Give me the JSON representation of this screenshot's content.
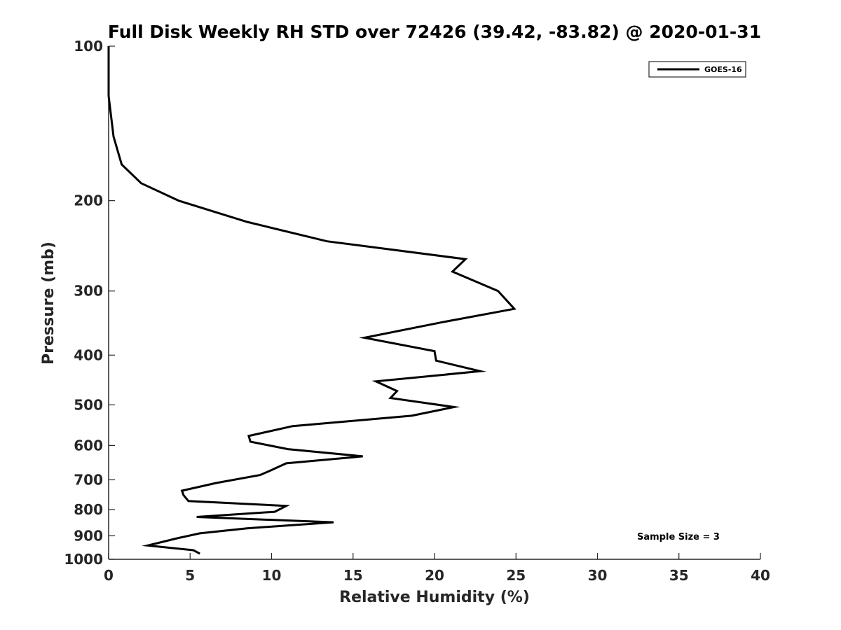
{
  "chart_data": {
    "type": "line",
    "title": "Full Disk Weekly RH STD over 72426 (39.42, -83.82) @ 2020-01-31",
    "xlabel": "Relative Humidity (%)",
    "ylabel": "Pressure (mb)",
    "xlim": [
      0,
      40
    ],
    "ylim": [
      100,
      1000
    ],
    "y_scale": "log",
    "y_reversed": true,
    "x_ticks": [
      "0",
      "5",
      "10",
      "15",
      "20",
      "25",
      "30",
      "35",
      "40"
    ],
    "y_ticks": [
      "100",
      "200",
      "300",
      "400",
      "500",
      "600",
      "700",
      "800",
      "900",
      "1000"
    ],
    "grid": false,
    "legend": {
      "position": "top-right",
      "entries": [
        "GOES-16"
      ]
    },
    "annotation": "Sample Size = 3",
    "series": [
      {
        "name": "GOES-16",
        "color": "#000000",
        "points": [
          [
            0,
            100
          ],
          [
            0,
            125
          ],
          [
            0.3,
            150
          ],
          [
            0.8,
            170
          ],
          [
            2.0,
            185
          ],
          [
            4.3,
            200
          ],
          [
            8.5,
            220
          ],
          [
            13.4,
            240
          ],
          [
            21.9,
            260
          ],
          [
            21.1,
            275
          ],
          [
            23.9,
            300
          ],
          [
            24.9,
            325
          ],
          [
            20.5,
            345
          ],
          [
            15.7,
            370
          ],
          [
            20.0,
            393
          ],
          [
            20.1,
            410
          ],
          [
            22.8,
            430
          ],
          [
            16.4,
            450
          ],
          [
            17.7,
            470
          ],
          [
            17.3,
            485
          ],
          [
            21.2,
            505
          ],
          [
            18.6,
            525
          ],
          [
            11.3,
            550
          ],
          [
            8.6,
            575
          ],
          [
            8.7,
            590
          ],
          [
            11.0,
            610
          ],
          [
            15.6,
            630
          ],
          [
            10.9,
            650
          ],
          [
            9.9,
            672
          ],
          [
            9.3,
            685
          ],
          [
            6.6,
            710
          ],
          [
            4.5,
            735
          ],
          [
            4.6,
            750
          ],
          [
            4.9,
            770
          ],
          [
            10.9,
            787
          ],
          [
            10.2,
            808
          ],
          [
            5.4,
            827
          ],
          [
            13.8,
            847
          ],
          [
            8.5,
            870
          ],
          [
            5.6,
            890
          ],
          [
            4.2,
            910
          ],
          [
            2.4,
            940
          ],
          [
            5.2,
            960
          ],
          [
            5.6,
            975
          ]
        ]
      }
    ]
  }
}
